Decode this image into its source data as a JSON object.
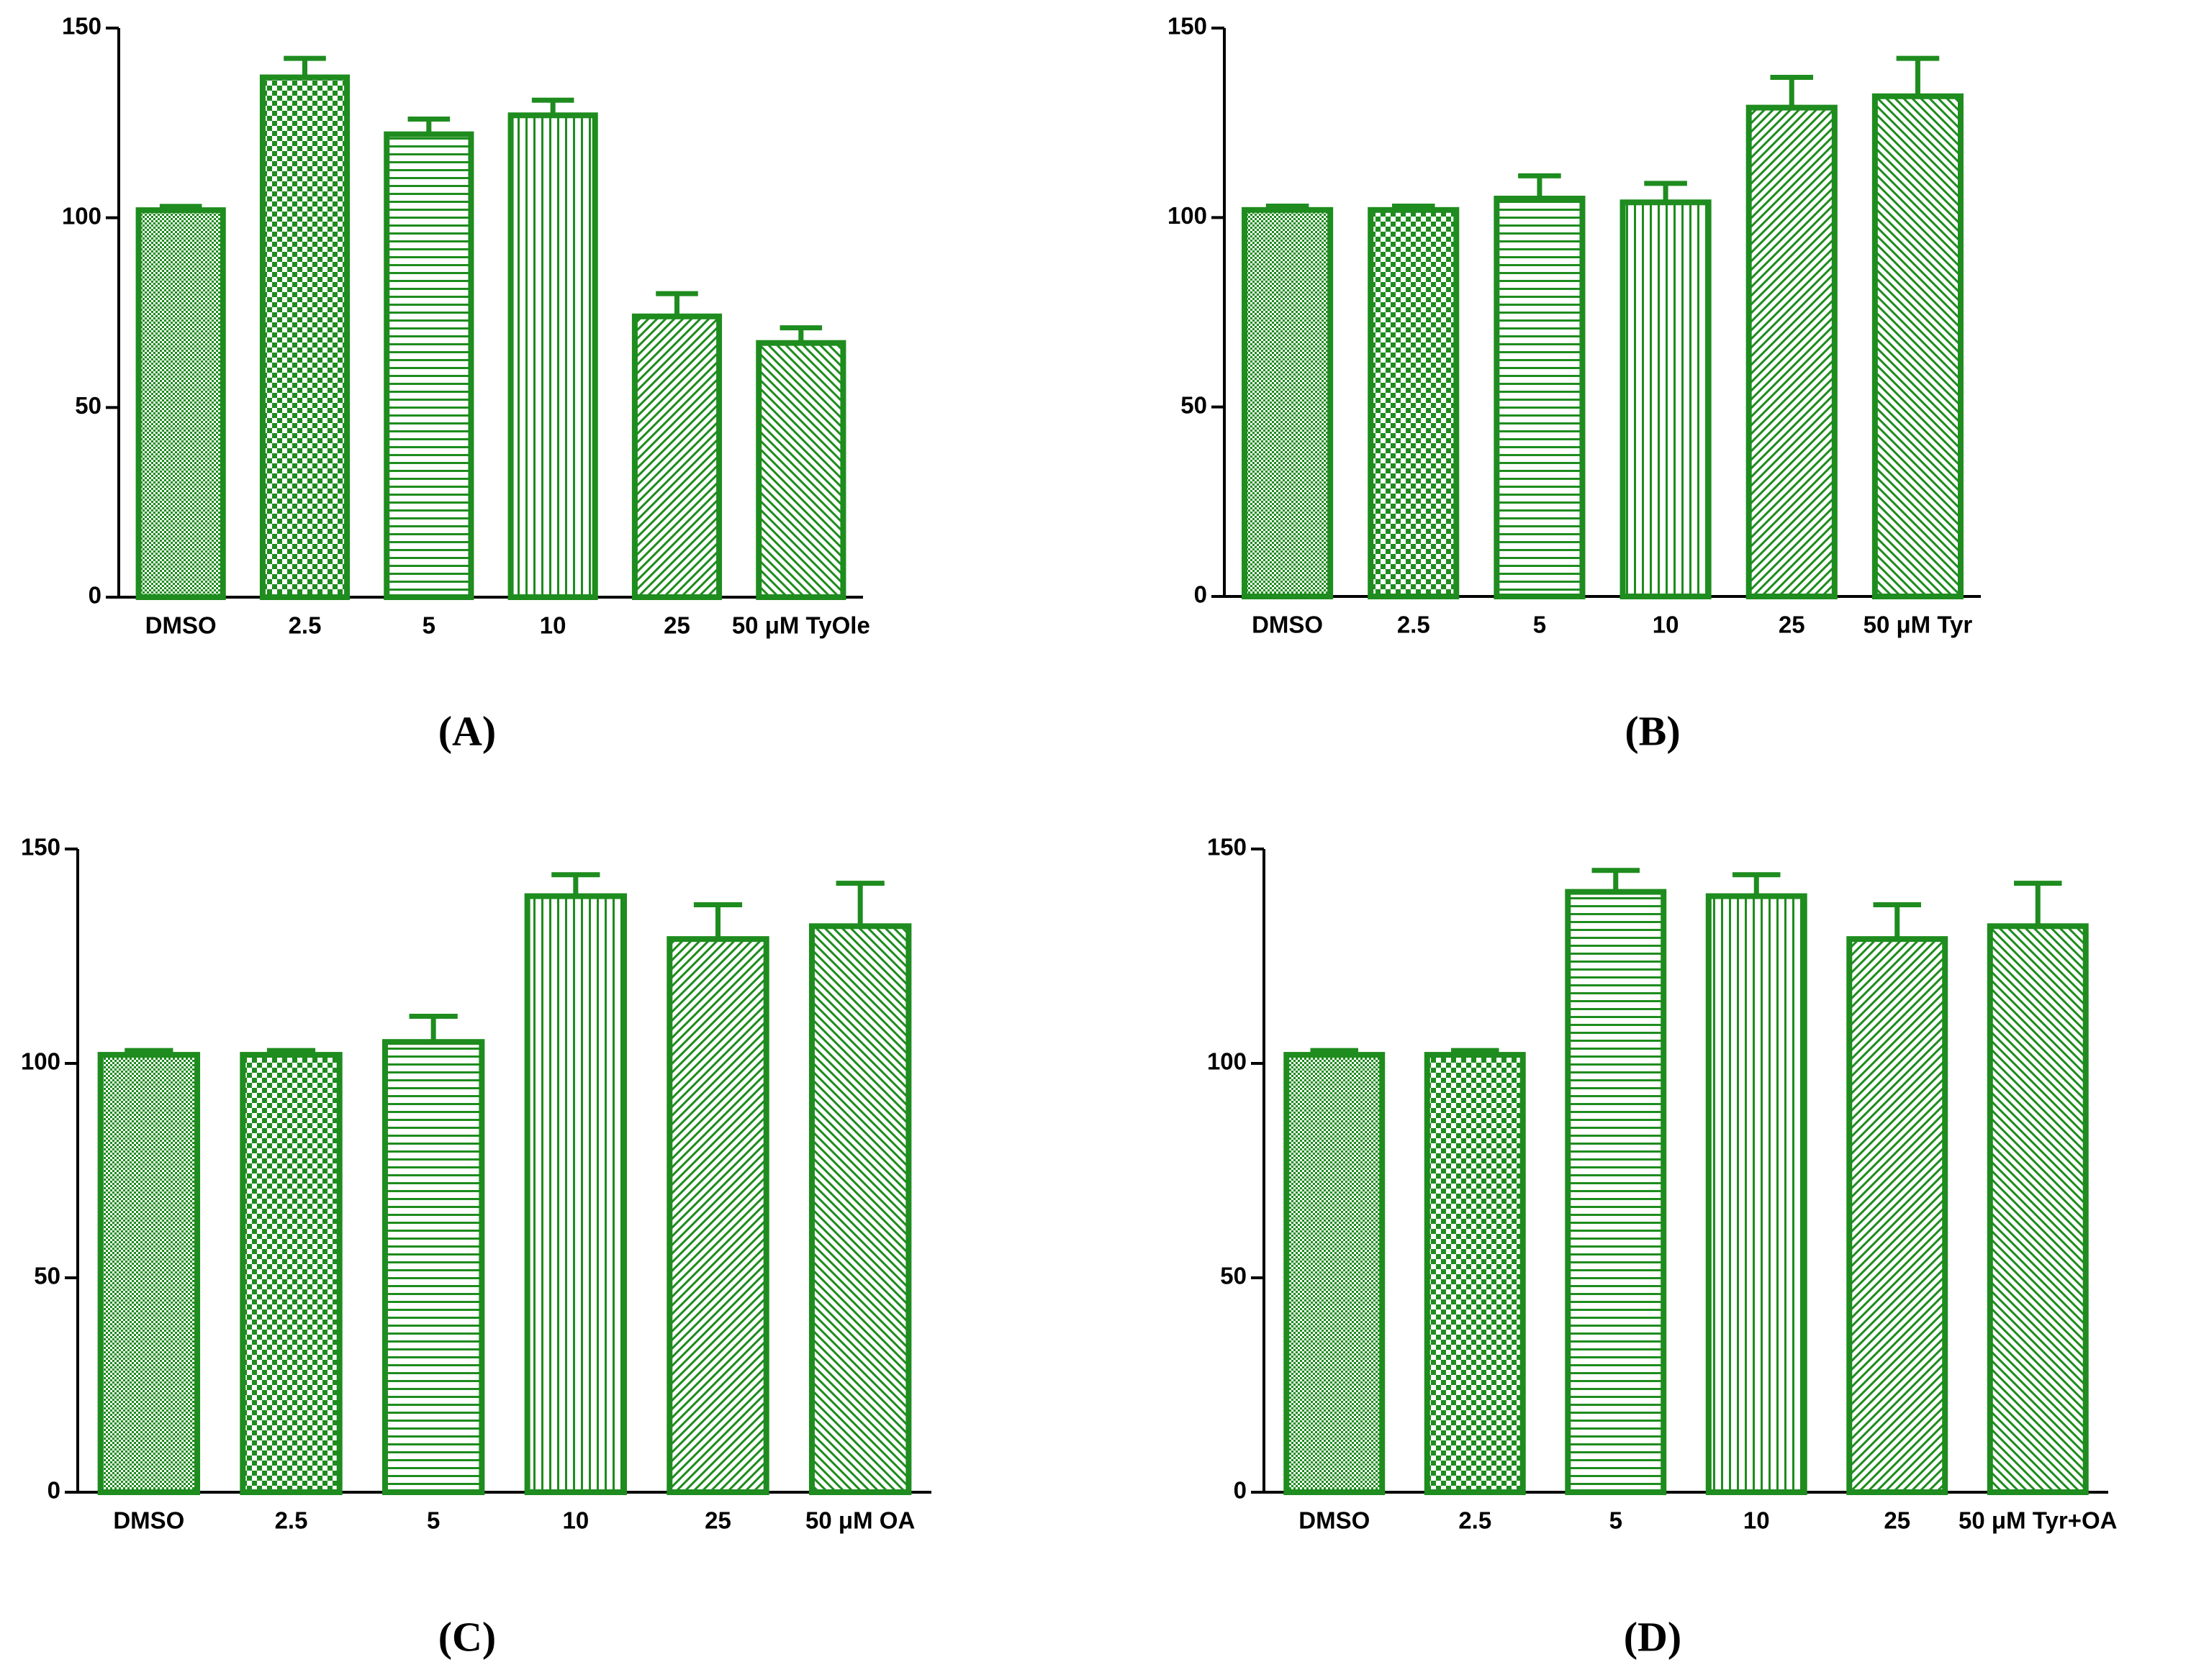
{
  "chart_data": [
    {
      "type": "bar",
      "panel_label": "(A)",
      "color": "#1e8c1e",
      "categories": [
        "DMSO",
        "2.5",
        "5",
        "10",
        "25",
        "50 μM TyOle"
      ],
      "values": [
        102,
        137,
        122,
        127,
        74,
        67
      ],
      "errors": [
        1,
        5,
        4,
        4,
        6,
        4
      ],
      "ylim": [
        0,
        150
      ],
      "yticks": [
        0,
        50,
        100,
        150
      ]
    },
    {
      "type": "bar",
      "panel_label": "(B)",
      "color": "#1e8c1e",
      "categories": [
        "DMSO",
        "2.5",
        "5",
        "10",
        "25",
        "50 μM Tyr"
      ],
      "values": [
        102,
        102,
        105,
        104,
        129,
        132
      ],
      "errors": [
        1,
        1,
        6,
        5,
        8,
        10
      ],
      "ylim": [
        0,
        150
      ],
      "yticks": [
        0,
        50,
        100,
        150
      ]
    },
    {
      "type": "bar",
      "panel_label": "(C)",
      "color": "#1e8c1e",
      "categories": [
        "DMSO",
        "2.5",
        "5",
        "10",
        "25",
        "50 μM OA"
      ],
      "values": [
        102,
        102,
        105,
        139,
        129,
        132
      ],
      "errors": [
        1,
        1,
        6,
        5,
        8,
        10
      ],
      "ylim": [
        0,
        150
      ],
      "yticks": [
        0,
        50,
        100,
        150
      ]
    },
    {
      "type": "bar",
      "panel_label": "(D)",
      "color": "#1e8c1e",
      "categories": [
        "DMSO",
        "2.5",
        "5",
        "10",
        "25",
        "50 μM Tyr+OA"
      ],
      "values": [
        102,
        102,
        140,
        139,
        129,
        132
      ],
      "errors": [
        1,
        1,
        5,
        5,
        8,
        10
      ],
      "ylim": [
        0,
        150
      ],
      "yticks": [
        0,
        50,
        100,
        150
      ]
    }
  ]
}
